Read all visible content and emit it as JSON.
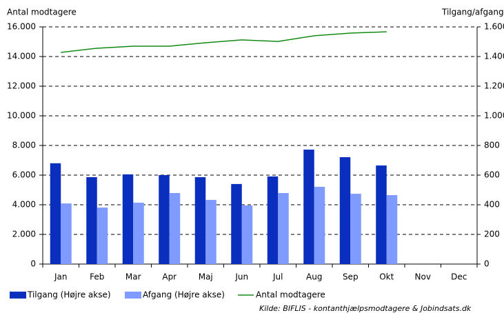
{
  "chart_data": {
    "type": "bar_line_dual",
    "y_label": "Antal modtagere",
    "y2_label": "Tilgang/afgang",
    "source": "Kilde: BIFLIS - kontanthjælpsmodtagere & Jobindsats.dk",
    "categories": [
      "Jan",
      "Feb",
      "Mar",
      "Apr",
      "Maj",
      "Jun",
      "Jul",
      "Aug",
      "Sep",
      "Okt",
      "Nov",
      "Dec"
    ],
    "series": [
      {
        "name": "Tilgang (Højre akse)",
        "type": "bar",
        "axis": "y2",
        "color": "#0a2fbf",
        "values": [
          680,
          586,
          605,
          600,
          586,
          540,
          591,
          772,
          721,
          665,
          null,
          null
        ]
      },
      {
        "name": "Afgang (Højre akse)",
        "type": "bar",
        "axis": "y2",
        "color": "#7f9bff",
        "values": [
          409,
          381,
          414,
          479,
          433,
          395,
          479,
          521,
          474,
          465,
          null,
          null
        ]
      },
      {
        "name": "Antal modtagere",
        "type": "line",
        "axis": "y",
        "color": "#138a13",
        "values": [
          14280,
          14560,
          14700,
          14700,
          14930,
          15120,
          15020,
          15400,
          15580,
          15670,
          null,
          null
        ]
      }
    ],
    "ylim": [
      0,
      16000
    ],
    "yticks": [
      0,
      {
        "value": 2000,
        "label": "2.000"
      },
      {
        "value": 4000,
        "label": "4.000"
      },
      {
        "value": 6000,
        "label": "6.000"
      },
      {
        "value": 8000,
        "label": "8.000"
      },
      {
        "value": 10000,
        "label": "10.000"
      },
      {
        "value": 12000,
        "label": "12.000"
      },
      {
        "value": 14000,
        "label": "14.000"
      },
      {
        "value": 16000,
        "label": "16.000"
      }
    ],
    "y2lim": [
      0,
      1600
    ],
    "y2ticks": [
      0,
      200,
      400,
      600,
      800,
      {
        "value": 1000,
        "label": "1.000"
      },
      {
        "value": 1200,
        "label": "1.200"
      },
      {
        "value": 1400,
        "label": "1.400"
      },
      {
        "value": 1600,
        "label": "1.600"
      }
    ],
    "grid": true
  }
}
